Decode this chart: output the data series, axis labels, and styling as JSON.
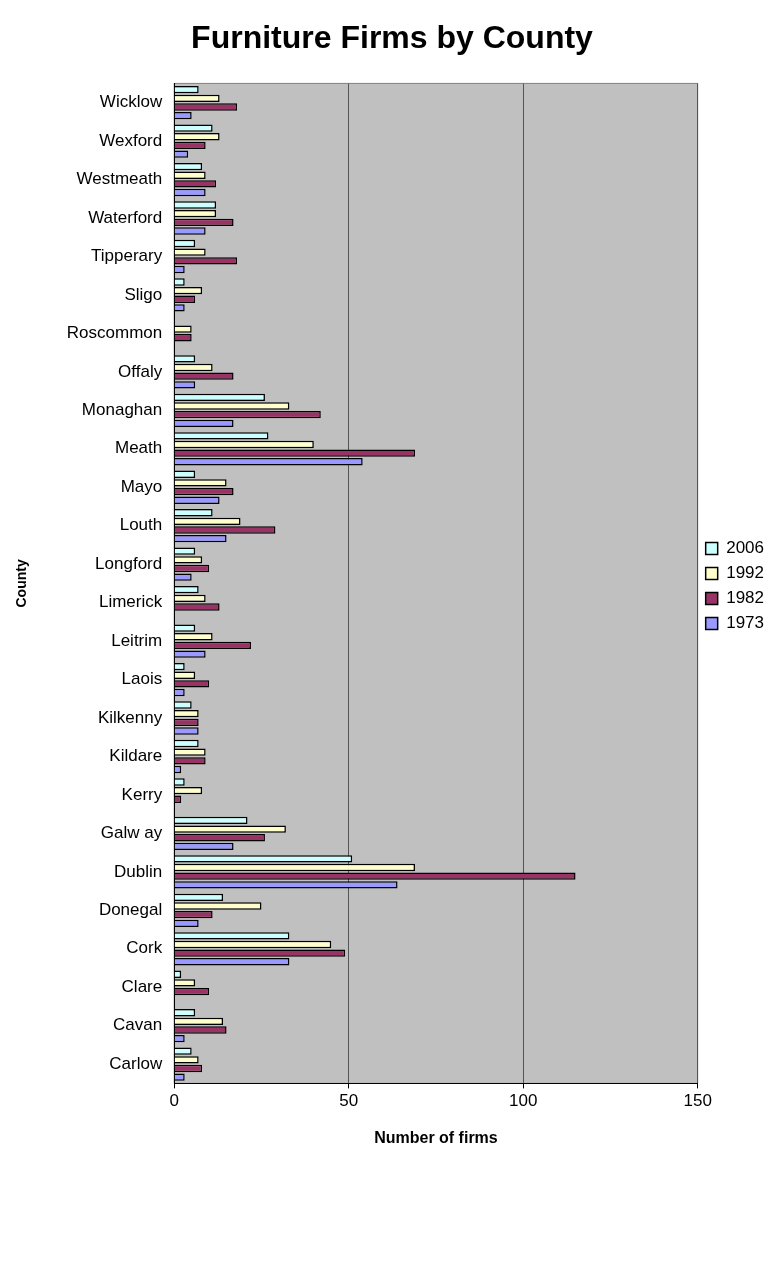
{
  "chart_data": {
    "type": "bar",
    "orientation": "horizontal",
    "title": "Furniture Firms by County",
    "xlabel": "Number of firms",
    "ylabel": "County",
    "categories": [
      "Wicklow",
      "Wexford",
      "Westmeath",
      "Waterford",
      "Tipperary",
      "Sligo",
      "Roscommon",
      "Offaly",
      "Monaghan",
      "Meath",
      "Mayo",
      "Louth",
      "Longford",
      "Limerick",
      "Leitrim",
      "Laois",
      "Kilkenny",
      "Kildare",
      "Kerry",
      "Galw ay",
      "Dublin",
      "Donegal",
      "Cork",
      "Clare",
      "Cavan",
      "Carlow"
    ],
    "series": [
      {
        "name": "2006",
        "color": "#ccffff",
        "values": [
          7,
          11,
          8,
          12,
          6,
          3,
          null,
          6,
          26,
          27,
          6,
          11,
          6,
          7,
          6,
          3,
          5,
          7,
          3,
          21,
          51,
          14,
          33,
          2,
          6,
          5
        ]
      },
      {
        "name": "1992",
        "color": "#ffffcc",
        "values": [
          13,
          13,
          9,
          12,
          9,
          8,
          5,
          11,
          33,
          40,
          15,
          19,
          8,
          9,
          11,
          6,
          7,
          9,
          8,
          32,
          69,
          25,
          45,
          6,
          14,
          7
        ]
      },
      {
        "name": "1982",
        "color": "#993366",
        "values": [
          18,
          9,
          12,
          17,
          18,
          6,
          5,
          17,
          42,
          69,
          17,
          29,
          10,
          13,
          22,
          10,
          7,
          9,
          2,
          26,
          115,
          11,
          49,
          10,
          15,
          8
        ]
      },
      {
        "name": "1973",
        "color": "#9999ff",
        "values": [
          5,
          4,
          9,
          9,
          3,
          3,
          null,
          6,
          17,
          54,
          13,
          15,
          5,
          null,
          9,
          3,
          7,
          2,
          null,
          17,
          64,
          7,
          33,
          null,
          3,
          3
        ]
      }
    ],
    "xlim": [
      0,
      150
    ],
    "xticks": [
      0,
      50,
      100,
      150
    ],
    "grid": "x",
    "legend": "right"
  }
}
